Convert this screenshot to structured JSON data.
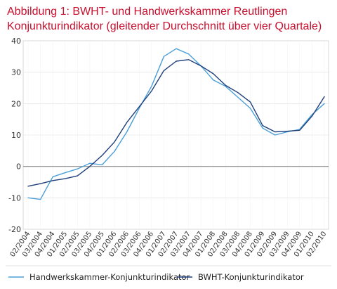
{
  "figure": {
    "title_line1": "Abbildung 1: BWHT- und Handwerkskammer  Reutlingen",
    "title_line2": "Konjunkturindikator (gleitender Durchschnitt über vier Quartale)"
  },
  "colors": {
    "title": "#c8102e",
    "handwerkskammer": "#4a9fd8",
    "bwht": "#1f3f7a",
    "zero_line": "#8a8a8a",
    "grid": "#dcdcdc",
    "axis_box": "#cfcfcf"
  },
  "chart_data": {
    "type": "line",
    "title": "Abbildung 1: BWHT- und Handwerkskammer  Reutlingen Konjunkturindikator (gleitender Durchschnitt über vier Quartale)",
    "xlabel": "",
    "ylabel": "",
    "ylim": [
      -20,
      40
    ],
    "yticks": [
      "40",
      "30",
      "20",
      "10",
      "0",
      "-10",
      "-20"
    ],
    "grid": true,
    "legend_position": "bottom",
    "categories": [
      "02/2004",
      "03/2004",
      "04/2004",
      "01/2005",
      "02/2005",
      "03/2005",
      "04/2005",
      "01/2006",
      "02/2006",
      "03/2006",
      "04/2006",
      "01/2007",
      "02/2007",
      "03/2007",
      "04/2007",
      "01/2008",
      "02/2008",
      "03/2008",
      "04/2008",
      "01/2009",
      "02/2009",
      "03/2009",
      "04/2009",
      "01/2010",
      "02/2010"
    ],
    "series": [
      {
        "name": "Handwerkskammer-Konjunkturindikator",
        "values": [
          -10,
          -10.5,
          -3.3,
          -2,
          -0.8,
          1,
          0.5,
          4.8,
          11,
          18.5,
          25.5,
          35,
          37.5,
          35.8,
          32,
          27.5,
          25.5,
          22,
          18.5,
          12.2,
          10,
          11,
          11.8,
          16.5,
          20
        ]
      },
      {
        "name": "BWHT-Konjunkturindikator",
        "values": [
          -6.3,
          -5.5,
          -4.5,
          -3.9,
          -3,
          0,
          3.5,
          7.8,
          14,
          19,
          24,
          30.5,
          33.5,
          34,
          32,
          29.5,
          25.8,
          23.5,
          20.5,
          13,
          11,
          11.2,
          11.5,
          16,
          22.2
        ]
      }
    ]
  }
}
